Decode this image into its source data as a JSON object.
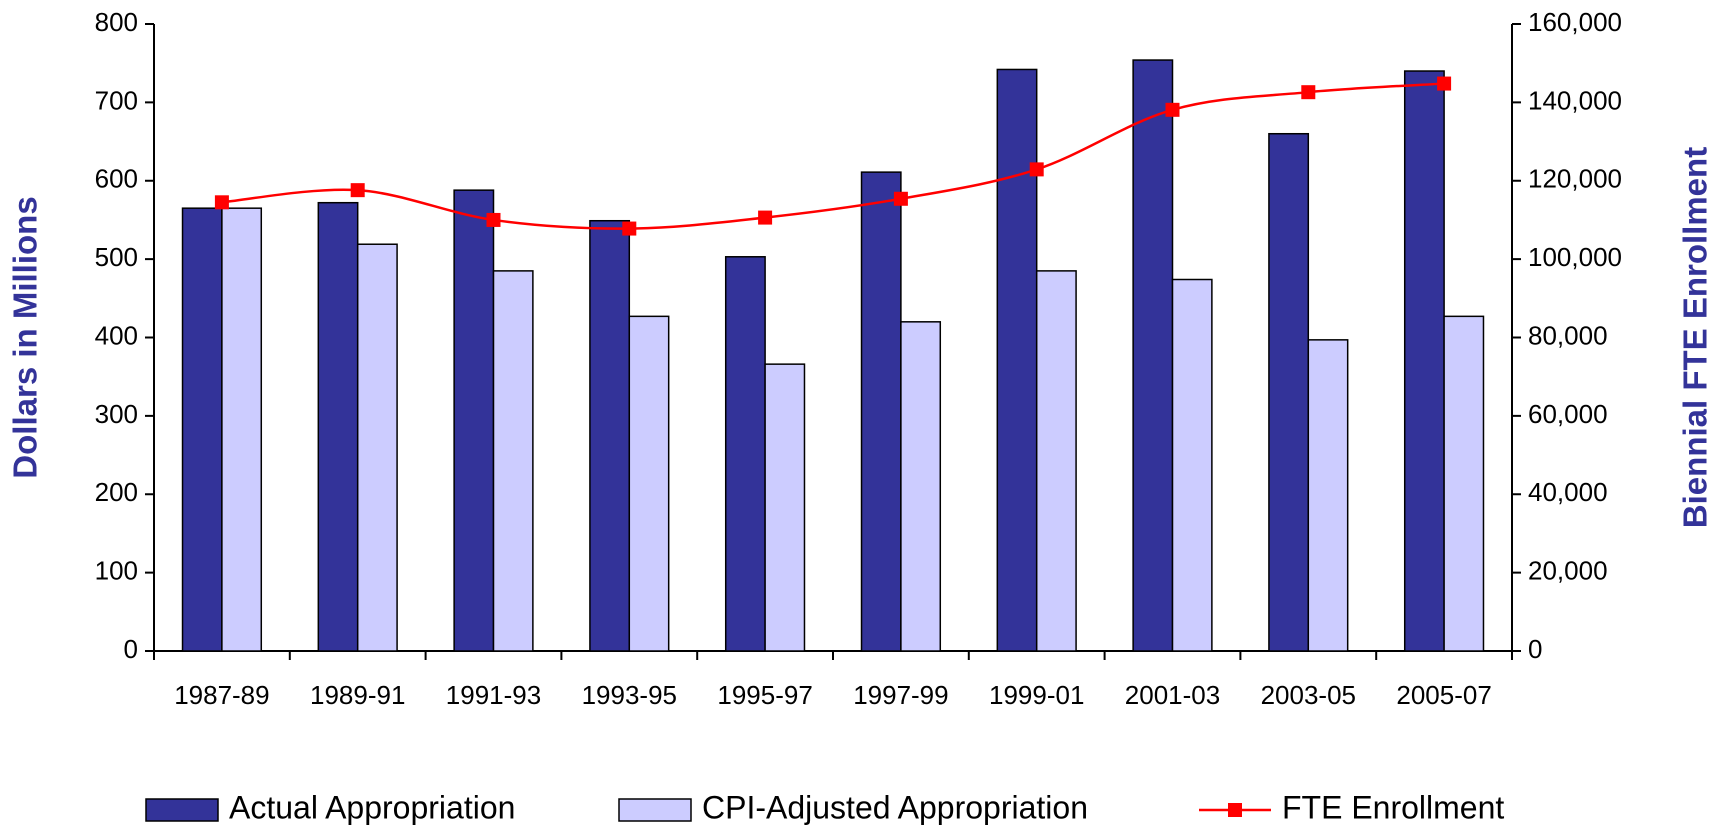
{
  "chart_data": {
    "type": "bar",
    "categories": [
      "1987-89",
      "1989-91",
      "1991-93",
      "1993-95",
      "1995-97",
      "1997-99",
      "1999-01",
      "2001-03",
      "2003-05",
      "2005-07"
    ],
    "ylabel": "Dollars in Millions",
    "y2label": "Biennial FTE Enrollment",
    "ylim": [
      0,
      800
    ],
    "yticks": [
      0,
      100,
      200,
      300,
      400,
      500,
      600,
      700,
      800
    ],
    "y2lim": [
      0,
      160000
    ],
    "y2ticks": [
      0,
      {
        "value": 20000,
        "label": "20,000"
      },
      {
        "value": 40000,
        "label": "40,000"
      },
      {
        "value": 60000,
        "label": "60,000"
      },
      {
        "value": 80000,
        "label": "80,000"
      },
      {
        "value": 100000,
        "label": "100,000"
      },
      {
        "value": 120000,
        "label": "120,000"
      },
      {
        "value": 140000,
        "label": "140,000"
      },
      {
        "value": 160000,
        "label": "160,000"
      }
    ],
    "series": [
      {
        "name": "Actual Appropriation",
        "type": "bar",
        "color": "#333399",
        "values": [
          565,
          572,
          588,
          549,
          503,
          611,
          742,
          754,
          660,
          740
        ]
      },
      {
        "name": "CPI-Adjusted Appropriation",
        "type": "bar",
        "color": "#ccccff",
        "values": [
          565,
          519,
          485,
          427,
          366,
          420,
          485,
          474,
          397,
          427
        ]
      },
      {
        "name": "FTE Enrollment",
        "type": "line",
        "axis": "y2",
        "color": "#ff0000",
        "values": [
          114500,
          117600,
          110000,
          107800,
          110600,
          115400,
          122900,
          138100,
          142600,
          144800
        ]
      }
    ],
    "legend": "bottom"
  }
}
